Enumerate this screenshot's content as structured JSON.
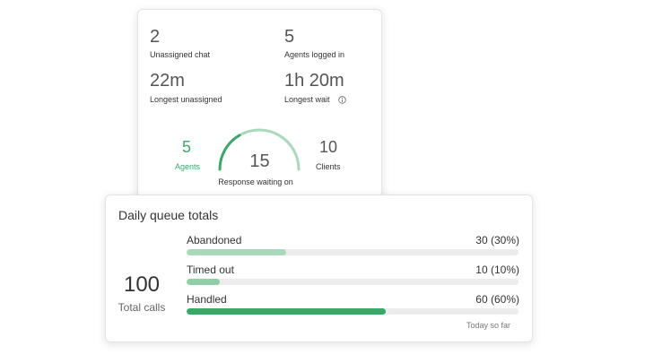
{
  "stats_card": {
    "stats": [
      {
        "value": "2",
        "label": "Unassigned chat"
      },
      {
        "value": "5",
        "label": "Agents logged in"
      },
      {
        "value": "22m",
        "label": "Longest unassigned"
      },
      {
        "value": "1h 20m",
        "label": "Longest wait"
      }
    ],
    "gauge": {
      "agents": {
        "value": 5,
        "label": "Agents"
      },
      "response": {
        "value": 15,
        "label": "Response waiting on"
      },
      "clients": {
        "value": 10,
        "label": "Clients"
      }
    }
  },
  "queue_card": {
    "title": "Daily queue totals",
    "total": {
      "value": 100,
      "label": "Total calls"
    },
    "rows": [
      {
        "name": "Abandoned",
        "value": 30,
        "value_label": "30 (30%)",
        "color": "#a9d9bb"
      },
      {
        "name": "Timed out",
        "value": 10,
        "value_label": "10 (10%)",
        "color": "#8fcfa7"
      },
      {
        "name": "Handled",
        "value": 60,
        "value_label": "60 (60%)",
        "color": "#3aa866"
      }
    ],
    "footnote": "Today so far"
  }
}
